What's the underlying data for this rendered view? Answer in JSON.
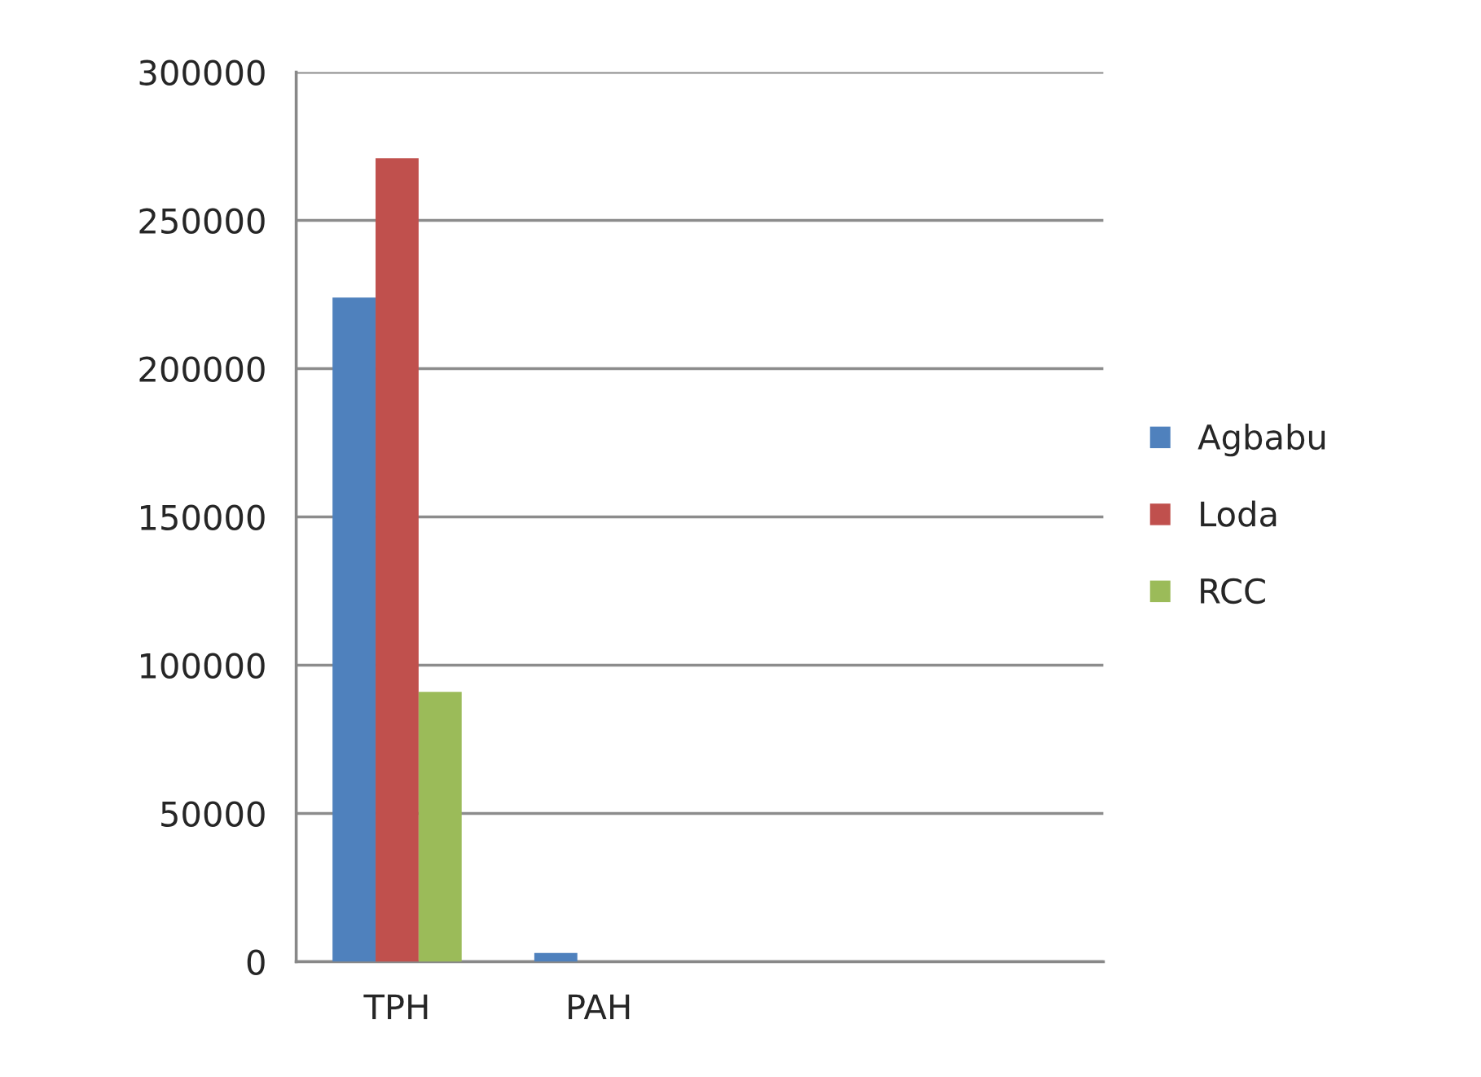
{
  "chart_data": {
    "type": "bar",
    "categories": [
      "TPH",
      "PAH",
      null,
      null
    ],
    "series": [
      {
        "name": "Agbabu",
        "color": "#4f81bd",
        "values": [
          224000,
          3000,
          null,
          null
        ]
      },
      {
        "name": "Loda",
        "color": "#c0504d",
        "values": [
          271000,
          0,
          null,
          null
        ]
      },
      {
        "name": "RCC",
        "color": "#9bbb59",
        "values": [
          91000,
          0,
          null,
          null
        ]
      }
    ],
    "ylim": [
      0,
      300000
    ],
    "yticks": [
      0,
      50000,
      100000,
      150000,
      200000,
      250000,
      300000
    ],
    "grid": "y",
    "legend": "right"
  }
}
